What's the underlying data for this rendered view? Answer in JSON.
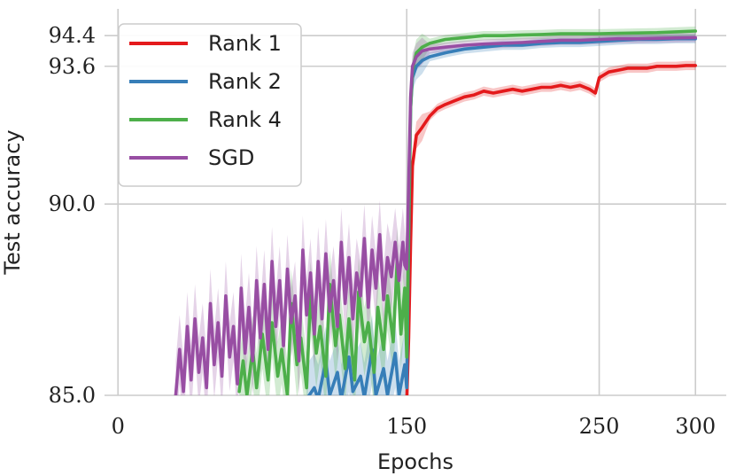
{
  "chart_data": {
    "type": "line",
    "xlabel": "Epochs",
    "ylabel": "Test accuracy",
    "xlim": [
      -7,
      316
    ],
    "ylim": [
      85.0,
      95.1
    ],
    "xticks": [
      0,
      150,
      250,
      300
    ],
    "xtick_labels": [
      "0",
      "150",
      "250",
      "300"
    ],
    "yticks": [
      85.0,
      90.0,
      93.6,
      94.4
    ],
    "ytick_labels": [
      "85.0",
      "90.0",
      "93.6",
      "94.4"
    ],
    "grid": true,
    "legend_position": "top-left",
    "series": [
      {
        "name": "Rank 1",
        "color": "#e41a1c",
        "points": [
          [
            150,
            84.8
          ],
          [
            151,
            86.5
          ],
          [
            152,
            89.0
          ],
          [
            153,
            91.0
          ],
          [
            155,
            91.8
          ],
          [
            158,
            92.0
          ],
          [
            162,
            92.3
          ],
          [
            166,
            92.5
          ],
          [
            170,
            92.6
          ],
          [
            175,
            92.7
          ],
          [
            180,
            92.8
          ],
          [
            185,
            92.85
          ],
          [
            190,
            92.95
          ],
          [
            195,
            92.9
          ],
          [
            200,
            92.95
          ],
          [
            205,
            93.0
          ],
          [
            210,
            92.95
          ],
          [
            215,
            93.0
          ],
          [
            220,
            93.05
          ],
          [
            225,
            93.05
          ],
          [
            230,
            93.1
          ],
          [
            235,
            93.05
          ],
          [
            240,
            93.1
          ],
          [
            245,
            93.0
          ],
          [
            248,
            92.9
          ],
          [
            250,
            93.3
          ],
          [
            255,
            93.45
          ],
          [
            260,
            93.5
          ],
          [
            265,
            93.55
          ],
          [
            270,
            93.55
          ],
          [
            275,
            93.55
          ],
          [
            280,
            93.6
          ],
          [
            285,
            93.6
          ],
          [
            290,
            93.6
          ],
          [
            295,
            93.62
          ],
          [
            300,
            93.62
          ]
        ]
      },
      {
        "name": "Rank 2",
        "color": "#377eb8",
        "points": [
          [
            98,
            84.9
          ],
          [
            102,
            85.2
          ],
          [
            104,
            84.9
          ],
          [
            108,
            85.9
          ],
          [
            110,
            85.0
          ],
          [
            114,
            85.6
          ],
          [
            116,
            84.9
          ],
          [
            120,
            86.0
          ],
          [
            122,
            85.1
          ],
          [
            126,
            85.5
          ],
          [
            128,
            84.95
          ],
          [
            132,
            86.2
          ],
          [
            134,
            85.0
          ],
          [
            138,
            85.7
          ],
          [
            140,
            85.0
          ],
          [
            144,
            86.1
          ],
          [
            146,
            85.0
          ],
          [
            149,
            85.8
          ],
          [
            150,
            85.2
          ],
          [
            151,
            89.0
          ],
          [
            152,
            92.5
          ],
          [
            153,
            93.3
          ],
          [
            155,
            93.6
          ],
          [
            158,
            93.75
          ],
          [
            162,
            93.85
          ],
          [
            170,
            93.95
          ],
          [
            180,
            94.05
          ],
          [
            190,
            94.1
          ],
          [
            200,
            94.15
          ],
          [
            210,
            94.15
          ],
          [
            220,
            94.2
          ],
          [
            230,
            94.22
          ],
          [
            240,
            94.22
          ],
          [
            250,
            94.25
          ],
          [
            260,
            94.28
          ],
          [
            270,
            94.3
          ],
          [
            280,
            94.3
          ],
          [
            290,
            94.32
          ],
          [
            300,
            94.32
          ]
        ]
      },
      {
        "name": "Rank 4",
        "color": "#4daf4a",
        "points": [
          [
            63,
            85.1
          ],
          [
            65,
            85.9
          ],
          [
            67,
            85.0
          ],
          [
            70,
            86.2
          ],
          [
            72,
            85.2
          ],
          [
            75,
            86.6
          ],
          [
            78,
            85.4
          ],
          [
            80,
            86.9
          ],
          [
            83,
            85.5
          ],
          [
            85,
            86.2
          ],
          [
            88,
            85.0
          ],
          [
            90,
            87.4
          ],
          [
            93,
            85.8
          ],
          [
            95,
            86.5
          ],
          [
            98,
            85.2
          ],
          [
            100,
            87.6
          ],
          [
            103,
            86.1
          ],
          [
            105,
            86.8
          ],
          [
            108,
            85.5
          ],
          [
            110,
            87.9
          ],
          [
            113,
            86.3
          ],
          [
            115,
            87.1
          ],
          [
            118,
            85.7
          ],
          [
            120,
            87.0
          ],
          [
            123,
            85.4
          ],
          [
            125,
            87.7
          ],
          [
            128,
            86.4
          ],
          [
            130,
            86.9
          ],
          [
            133,
            85.6
          ],
          [
            135,
            87.3
          ],
          [
            138,
            86.2
          ],
          [
            140,
            87.6
          ],
          [
            143,
            86.4
          ],
          [
            145,
            88.5
          ],
          [
            147,
            86.6
          ],
          [
            149,
            87.8
          ],
          [
            150,
            86.0
          ],
          [
            151,
            89.5
          ],
          [
            152,
            92.5
          ],
          [
            153,
            93.5
          ],
          [
            155,
            93.95
          ],
          [
            158,
            94.1
          ],
          [
            162,
            94.2
          ],
          [
            170,
            94.3
          ],
          [
            180,
            94.35
          ],
          [
            190,
            94.4
          ],
          [
            200,
            94.4
          ],
          [
            210,
            94.42
          ],
          [
            220,
            94.43
          ],
          [
            230,
            94.45
          ],
          [
            240,
            94.45
          ],
          [
            250,
            94.45
          ],
          [
            260,
            94.46
          ],
          [
            270,
            94.47
          ],
          [
            280,
            94.48
          ],
          [
            290,
            94.5
          ],
          [
            300,
            94.52
          ]
        ]
      },
      {
        "name": "SGD",
        "color": "#984ea3",
        "points": [
          [
            30,
            85.0
          ],
          [
            32,
            86.2
          ],
          [
            34,
            85.1
          ],
          [
            36,
            86.8
          ],
          [
            38,
            85.4
          ],
          [
            40,
            87.0
          ],
          [
            42,
            85.6
          ],
          [
            44,
            86.5
          ],
          [
            46,
            85.2
          ],
          [
            48,
            87.4
          ],
          [
            50,
            85.8
          ],
          [
            52,
            86.9
          ],
          [
            54,
            85.5
          ],
          [
            56,
            87.6
          ],
          [
            58,
            86.0
          ],
          [
            60,
            86.8
          ],
          [
            62,
            85.3
          ],
          [
            64,
            87.8
          ],
          [
            66,
            86.1
          ],
          [
            68,
            87.3
          ],
          [
            70,
            85.9
          ],
          [
            72,
            88.0
          ],
          [
            74,
            86.5
          ],
          [
            76,
            87.9
          ],
          [
            78,
            86.2
          ],
          [
            80,
            88.5
          ],
          [
            82,
            86.8
          ],
          [
            84,
            88.0
          ],
          [
            86,
            86.3
          ],
          [
            88,
            88.3
          ],
          [
            90,
            86.9
          ],
          [
            92,
            87.6
          ],
          [
            94,
            85.9
          ],
          [
            96,
            88.8
          ],
          [
            98,
            87.1
          ],
          [
            100,
            88.2
          ],
          [
            102,
            86.6
          ],
          [
            104,
            88.5
          ],
          [
            106,
            87.0
          ],
          [
            108,
            88.7
          ],
          [
            110,
            87.2
          ],
          [
            112,
            88.0
          ],
          [
            114,
            86.8
          ],
          [
            116,
            89.0
          ],
          [
            118,
            87.4
          ],
          [
            120,
            88.6
          ],
          [
            122,
            87.0
          ],
          [
            124,
            88.2
          ],
          [
            126,
            87.6
          ],
          [
            128,
            89.1
          ],
          [
            130,
            87.3
          ],
          [
            132,
            88.8
          ],
          [
            134,
            87.8
          ],
          [
            136,
            89.2
          ],
          [
            138,
            87.5
          ],
          [
            140,
            88.6
          ],
          [
            142,
            88.1
          ],
          [
            144,
            89.0
          ],
          [
            146,
            88.0
          ],
          [
            148,
            89.0
          ],
          [
            149,
            88.4
          ],
          [
            150,
            88.3
          ],
          [
            151,
            90.5
          ],
          [
            152,
            92.8
          ],
          [
            153,
            93.6
          ],
          [
            155,
            93.85
          ],
          [
            158,
            94.0
          ],
          [
            162,
            94.05
          ],
          [
            170,
            94.1
          ],
          [
            180,
            94.15
          ],
          [
            190,
            94.18
          ],
          [
            200,
            94.2
          ],
          [
            210,
            94.22
          ],
          [
            220,
            94.25
          ],
          [
            230,
            94.28
          ],
          [
            240,
            94.28
          ],
          [
            250,
            94.3
          ],
          [
            260,
            94.32
          ],
          [
            270,
            94.32
          ],
          [
            280,
            94.33
          ],
          [
            290,
            94.34
          ],
          [
            300,
            94.35
          ]
        ]
      }
    ]
  }
}
